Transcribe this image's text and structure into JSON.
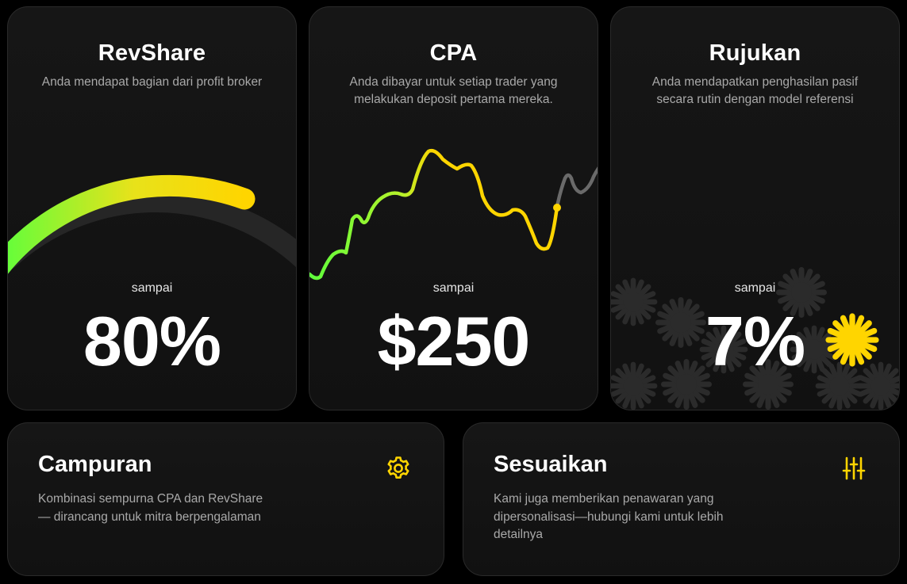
{
  "cards": [
    {
      "title": "RevShare",
      "description": "Anda mendapat bagian dari profit broker",
      "upto_label": "sampai",
      "value": "80%",
      "gauge_level": 0.8
    },
    {
      "title": "CPA",
      "description": "Anda dibayar untuk setiap trader yang melakukan deposit pertama mereka.",
      "upto_label": "sampai",
      "value": "$250"
    },
    {
      "title": "Rujukan",
      "description": "Anda mendapatkan penghasilan pasif secara rutin dengan model referensi",
      "upto_label": "sampai",
      "value": "7%"
    }
  ],
  "bottom_cards": [
    {
      "title": "Campuran",
      "description": "Kombinasi sempurna CPA dan RevShare — dirancang untuk mitra berpengalaman",
      "icon": "gear-icon"
    },
    {
      "title": "Sesuaikan",
      "description": "Kami juga memberikan penawaran yang dipersonalisasi—hubungi kami untuk lebih detailnya",
      "icon": "sliders-icon"
    }
  ],
  "colors": {
    "accent_yellow": "#ffd500",
    "accent_green": "#5dff3c",
    "card_background": "#141414",
    "muted_text": "#a9a9a9",
    "decor_gray": "#2a2a2a"
  }
}
